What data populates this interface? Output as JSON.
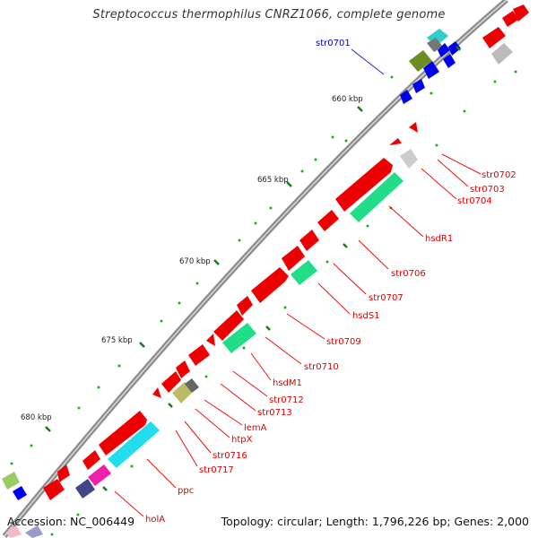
{
  "title": "Streptococcus thermophilus CNRZ1066, complete genome",
  "accession": "Accession: NC_006449",
  "summary": "Topology: circular; Length: 1,796,226 bp; Genes: 2,000",
  "colors": {
    "backbone": "#888888",
    "forward_gene": "#ee0000",
    "gene_label": "#dd0000",
    "link_gene_label": "#0000cc",
    "tick_major": "#227722",
    "tick_minor": "#119911"
  },
  "scale_labels": [
    "660 kbp",
    "665 kbp",
    "670 kbp",
    "675 kbp",
    "680 kbp"
  ],
  "gene_labels": [
    {
      "text": "str0701",
      "color": "link"
    },
    {
      "text": "str0702",
      "color": "red"
    },
    {
      "text": "str0703",
      "color": "red"
    },
    {
      "text": "str0704",
      "color": "red"
    },
    {
      "text": "hsdR1",
      "color": "red"
    },
    {
      "text": "str0706",
      "color": "red"
    },
    {
      "text": "str0707",
      "color": "red"
    },
    {
      "text": "hsdS1",
      "color": "red"
    },
    {
      "text": "str0709",
      "color": "red"
    },
    {
      "text": "str0710",
      "color": "red"
    },
    {
      "text": "hsdM1",
      "color": "red"
    },
    {
      "text": "str0712",
      "color": "red"
    },
    {
      "text": "str0713",
      "color": "red"
    },
    {
      "text": "lemA",
      "color": "red"
    },
    {
      "text": "htpX",
      "color": "red"
    },
    {
      "text": "str0716",
      "color": "red"
    },
    {
      "text": "str0717",
      "color": "red"
    },
    {
      "text": "ppc",
      "color": "red"
    },
    {
      "text": "holA",
      "color": "red"
    }
  ]
}
